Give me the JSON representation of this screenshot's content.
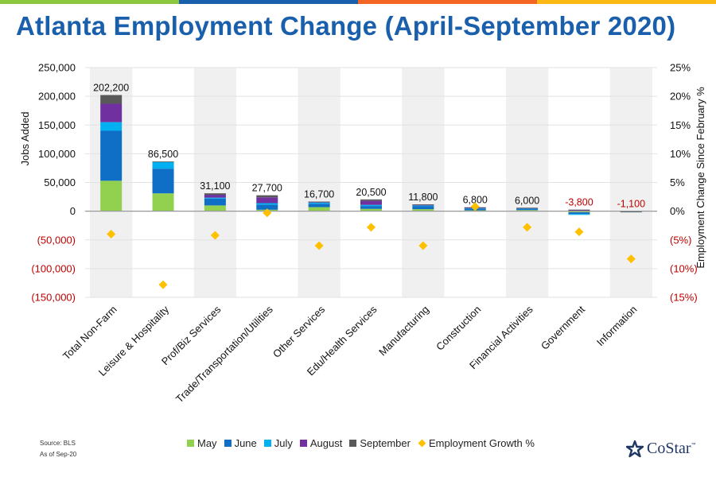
{
  "page": {
    "title": "Atlanta Employment Change (April-September 2020)",
    "source": "Source: BLS",
    "as_of": "As of Sep-20",
    "logo_text": "CoStar",
    "logo_tm": "™",
    "topbar_colors": [
      "#8dc63f",
      "#1a5fac",
      "#f26522",
      "#fdb913"
    ]
  },
  "chart_data": {
    "type": "bar",
    "stacked": true,
    "title": "Atlanta Employment Change (April-September 2020)",
    "categories": [
      "Total Non-Farm",
      "Leisure & Hospitality",
      "Prof/Biz Services",
      "Trade/Transportation/Utilities",
      "Other Services",
      "Edu/Health Services",
      "Manufacturing",
      "Construction",
      "Financial Activities",
      "Government",
      "Information"
    ],
    "series": [
      {
        "name": "May",
        "color": "#92d050",
        "values": [
          53000,
          31000,
          10000,
          2500,
          7000,
          4000,
          3500,
          1500,
          2000,
          -2000,
          -300
        ]
      },
      {
        "name": "June",
        "color": "#0f6fc6",
        "values": [
          87000,
          43000,
          12000,
          9000,
          6000,
          5000,
          5500,
          2500,
          2000,
          -3000,
          -400
        ]
      },
      {
        "name": "July",
        "color": "#00b0f0",
        "values": [
          15000,
          12000,
          1500,
          2500,
          2000,
          2000,
          1000,
          800,
          500,
          -1500,
          -200
        ]
      },
      {
        "name": "August",
        "color": "#7030a0",
        "values": [
          32000,
          0,
          5000,
          10000,
          1200,
          7000,
          1500,
          1000,
          1000,
          2000,
          0
        ]
      },
      {
        "name": "September",
        "color": "#595959",
        "values": [
          15200,
          500,
          2600,
          3700,
          500,
          2500,
          300,
          1000,
          500,
          700,
          -200
        ]
      }
    ],
    "totals": [
      202200,
      86500,
      31100,
      27700,
      16700,
      20500,
      11800,
      6800,
      6000,
      -3800,
      -1100
    ],
    "total_labels": [
      "202,200",
      "86,500",
      "31,100",
      "27,700",
      "16,700",
      "20,500",
      "11,800",
      "6,800",
      "6,000",
      "-3,800",
      "-1,100"
    ],
    "growth_series": {
      "name": "Employment Growth %",
      "color": "#ffc000",
      "values": [
        -4.0,
        -12.8,
        -4.2,
        -0.3,
        -6.0,
        -2.8,
        -6.0,
        0.8,
        -2.8,
        -3.6,
        -8.3
      ]
    },
    "ylabel": "Jobs Added",
    "y2label": "Employment Change Since February %",
    "ylim": [
      -150000,
      250000
    ],
    "y2lim": [
      -15,
      25
    ],
    "y_ticks": [
      "250,000",
      "200,000",
      "150,000",
      "100,000",
      "50,000",
      "0",
      "(50,000)",
      "(100,000)",
      "(150,000)"
    ],
    "y2_ticks": [
      "25%",
      "20%",
      "15%",
      "10%",
      "5%",
      "0%",
      "(5%)",
      "(10%)",
      "(15%)"
    ],
    "legend_position": "bottom",
    "alternating_column_shading": true,
    "negative_color": "#c00000"
  }
}
